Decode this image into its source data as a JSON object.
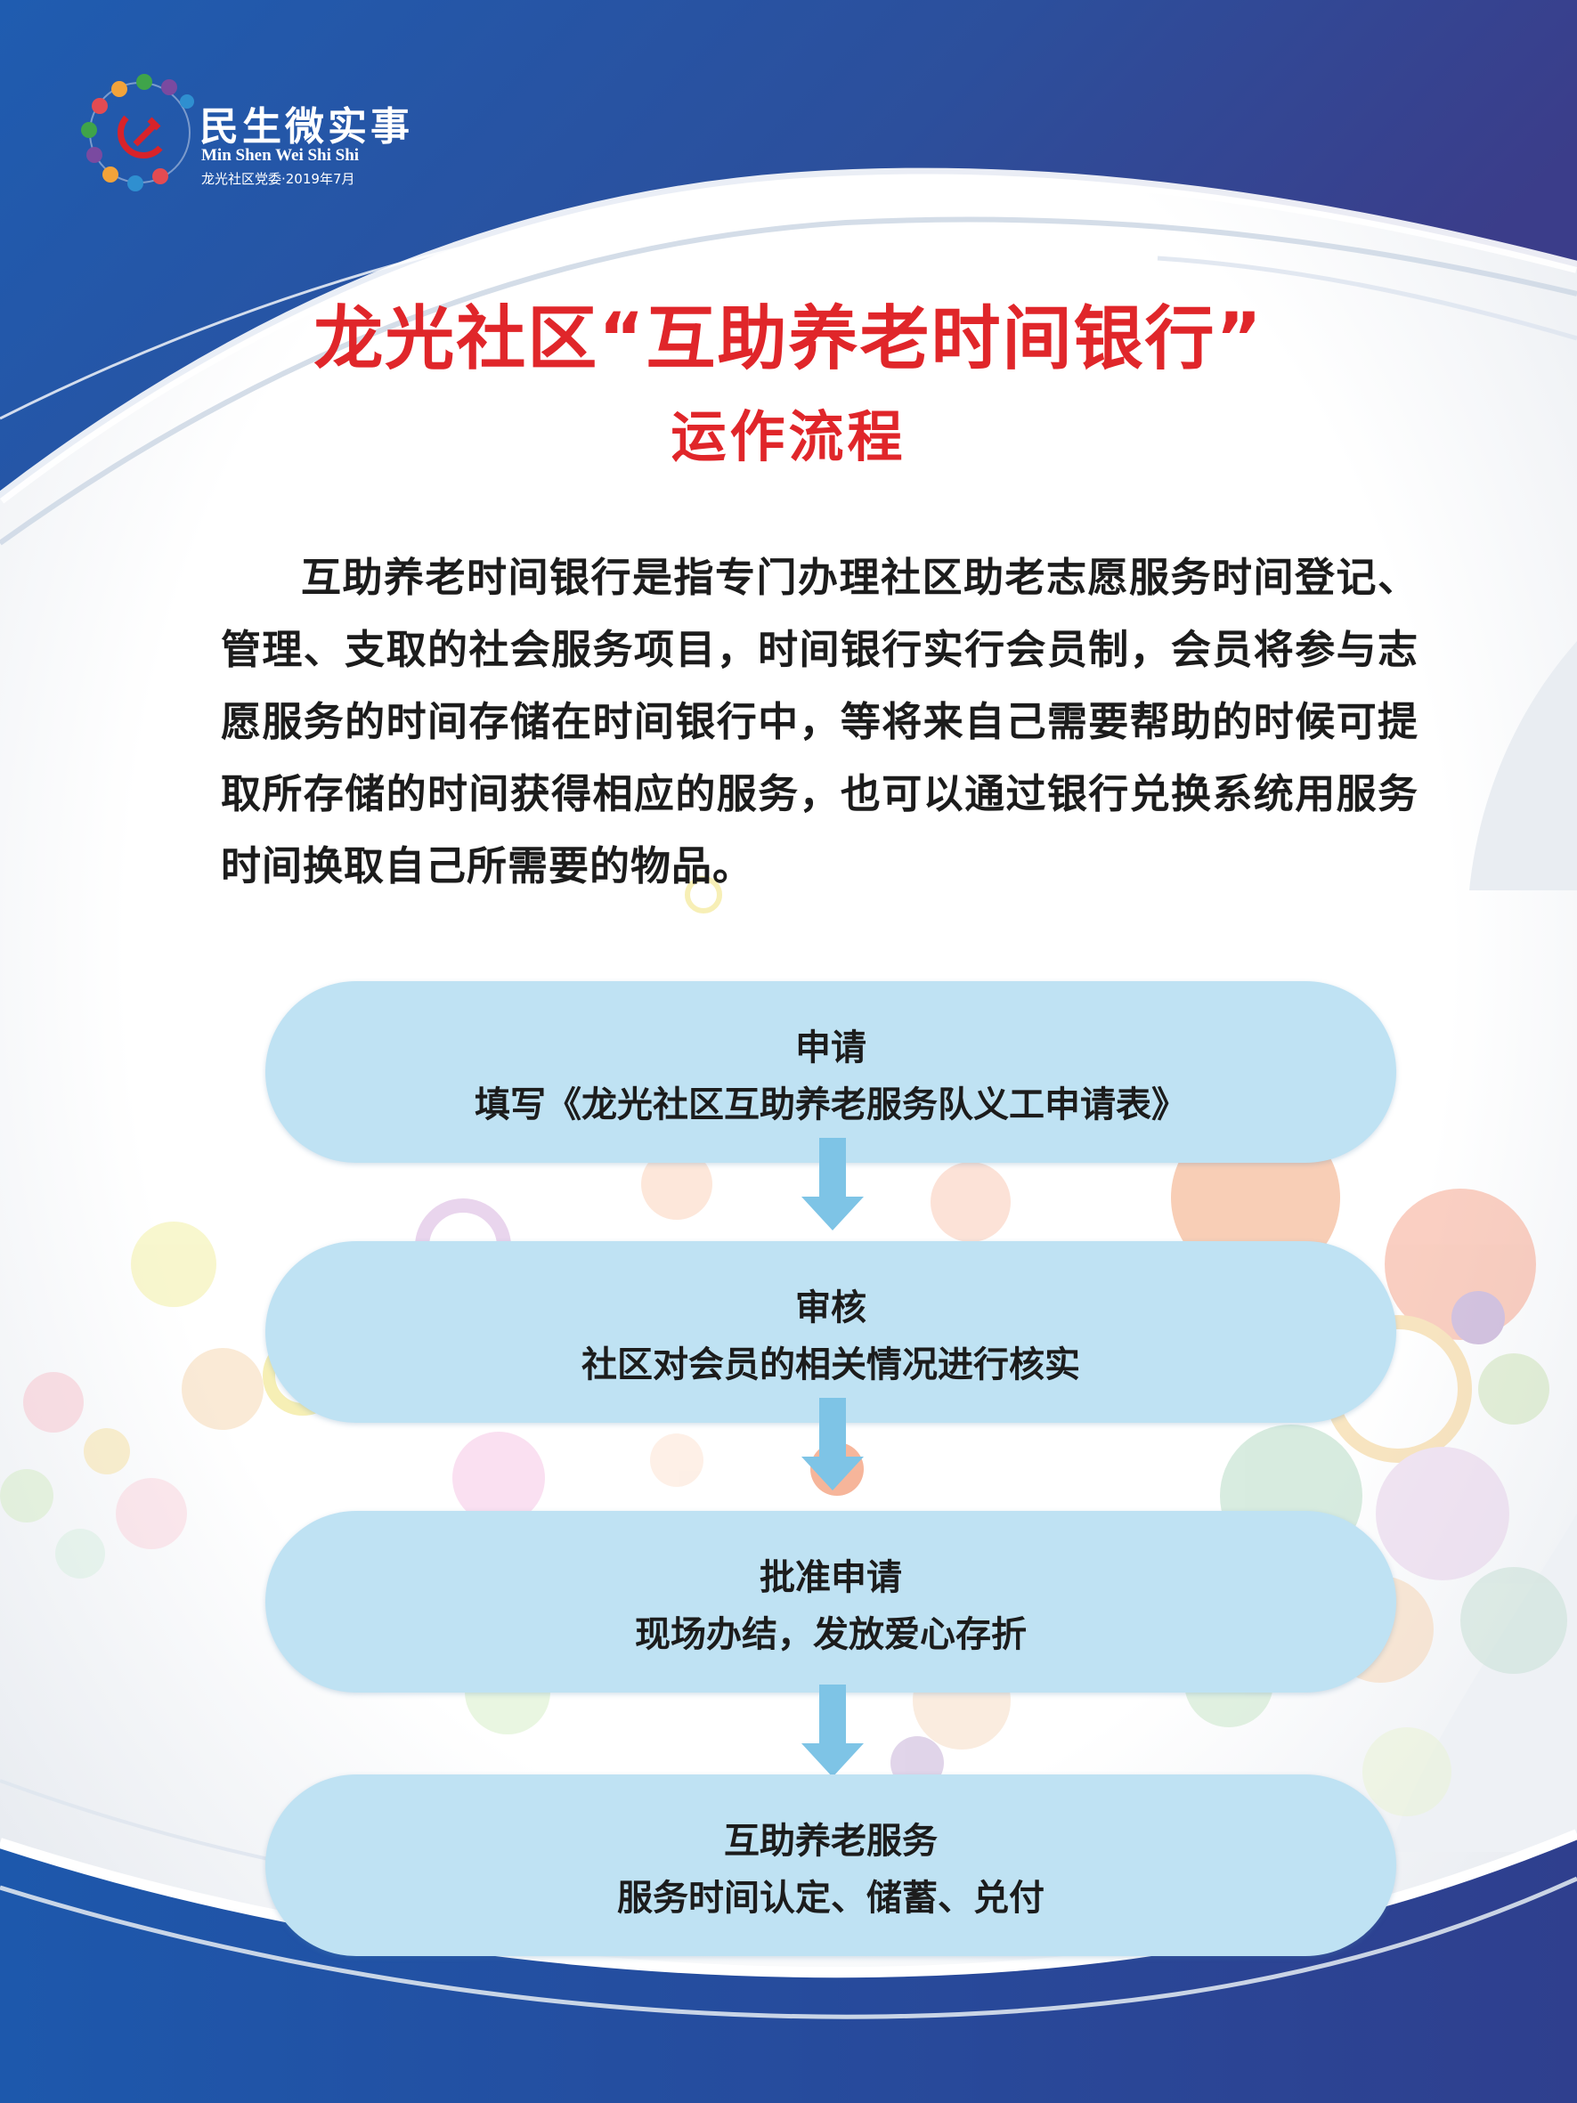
{
  "logo": {
    "title": "民生微实事",
    "pinyin": "Min Shen Wei Shi Shi",
    "org": "龙光社区党委·2019年7月",
    "icon": "party-emblem-with-figures-icon"
  },
  "poster": {
    "title": "龙光社区“互助养老时间银行”",
    "subtitle": "运作流程",
    "intro": "互助养老时间银行是指专门办理社区助老志愿服务时间登记、管理、支取的社会服务项目，时间银行实行会员制，会员将参与志愿服务的时间存储在时间银行中，等将来自己需要帮助的时候可提取所存储的时间获得相应的服务，也可以通过银行兑换系统用服务时间换取自己所需要的物品。"
  },
  "steps": [
    {
      "name": "申请",
      "desc": "填写《龙光社区互助养老服务队义工申请表》"
    },
    {
      "name": "审核",
      "desc": "社区对会员的相关情况进行核实"
    },
    {
      "name": "批准申请",
      "desc": "现场办结，发放爱心存折"
    },
    {
      "name": "互助养老服务",
      "desc": "服务时间认定、储蓄、兑付"
    }
  ],
  "colors": {
    "title": "#e0262a",
    "step_fill": "#bfe2f3",
    "arrow": "#7ec4e6",
    "frame_blue": "#1f56a8"
  }
}
